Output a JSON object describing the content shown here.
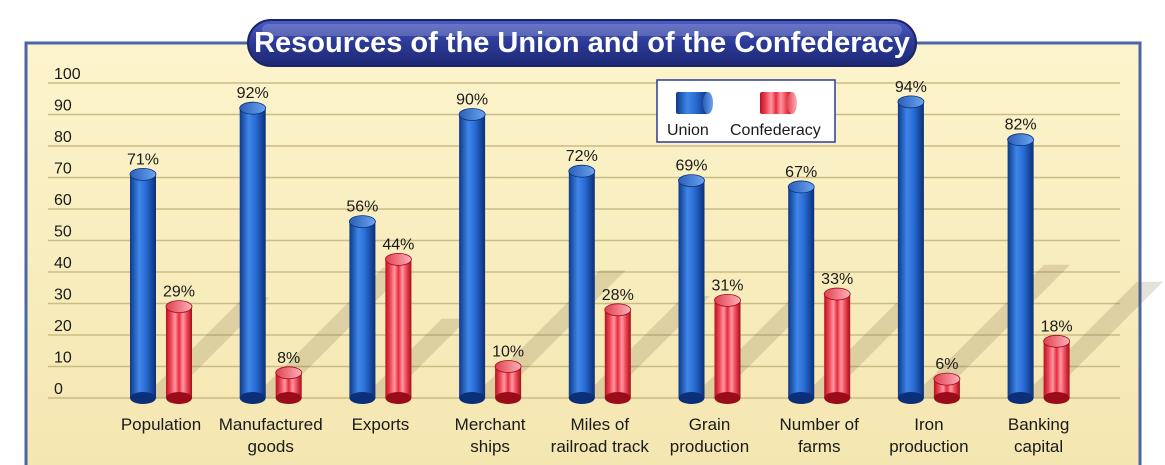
{
  "chart_data": {
    "type": "bar",
    "title": "Resources of the Union and of the Confederacy",
    "xlabel": "",
    "ylabel": "",
    "ylim": [
      0,
      100
    ],
    "yticks": [
      "0",
      "10",
      "20",
      "30",
      "40",
      "50",
      "60",
      "70",
      "80",
      "90",
      "100"
    ],
    "categories": [
      [
        "Population"
      ],
      [
        "Manufactured",
        "goods"
      ],
      [
        "Exports"
      ],
      [
        "Merchant",
        "ships"
      ],
      [
        "Miles of",
        "railroad track"
      ],
      [
        "Grain",
        "production"
      ],
      [
        "Number of",
        "farms"
      ],
      [
        "Iron",
        "production"
      ],
      [
        "Banking",
        "capital"
      ]
    ],
    "series": [
      {
        "name": "Union",
        "color": "#1f5fbf",
        "values": [
          71,
          92,
          56,
          90,
          72,
          69,
          67,
          94,
          82
        ],
        "labels": [
          "71%",
          "92%",
          "56%",
          "90%",
          "72%",
          "69%",
          "67%",
          "94%",
          "82%"
        ]
      },
      {
        "name": "Confederacy",
        "color": "#e8283c",
        "values": [
          29,
          8,
          44,
          10,
          28,
          31,
          33,
          6,
          18
        ],
        "labels": [
          "29%",
          "8%",
          "44%",
          "10%",
          "28%",
          "31%",
          "33%",
          "6%",
          "18%"
        ]
      }
    ],
    "grid": true,
    "legend": "top-center"
  },
  "colors": {
    "page_bg": "#ffffff",
    "panel_bg": "#fbf2c7",
    "panel_border": "#4b64a8",
    "gridline": "#cdbb86",
    "title_bg": "#2b3a96"
  }
}
